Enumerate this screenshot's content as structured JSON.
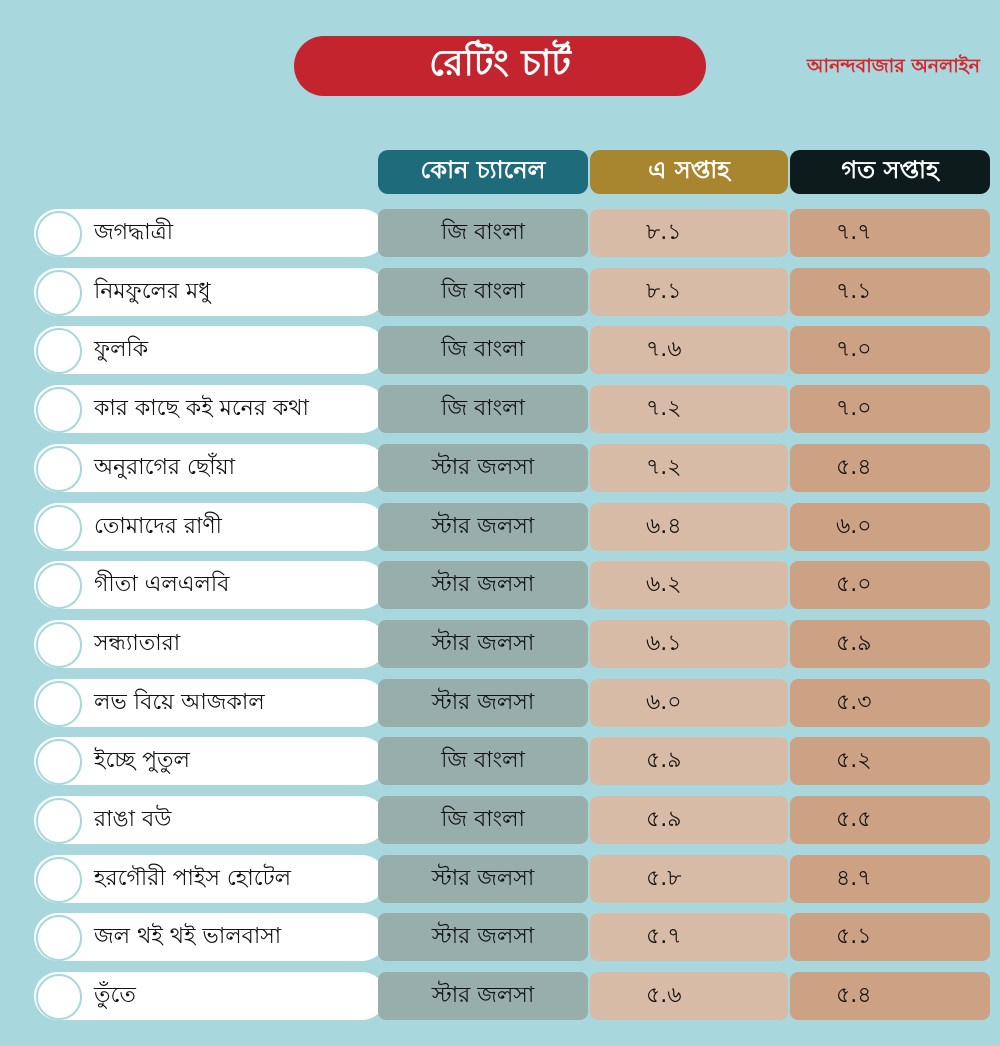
{
  "title": "রেটিং চার্ট",
  "brand": "আনন্দবাজার অনলাইন",
  "headers": {
    "channel": "কোন চ্যানেল",
    "this_week": "এ সপ্তাহ",
    "last_week": "গত সপ্তাহ"
  },
  "colors": {
    "background": "#a8d8dd",
    "title": "#c4242d",
    "channel_header": "#1e6b7b",
    "this_week_header": "#a8852f",
    "last_week_header": "#0e1b1c",
    "channel_cell": "#97aeab",
    "this_week_cell": "#d8bba6",
    "last_week_cell": "#cca184"
  },
  "chart_data": {
    "type": "table",
    "title": "রেটিং চার্ট",
    "columns": [
      "কোন চ্যানেল",
      "এ সপ্তাহ",
      "গত সপ্তাহ"
    ],
    "rows": [
      {
        "name": "জগদ্ধাত্রী",
        "channel": "জি বাংলা",
        "this_week": "৮.১",
        "last_week": "৭.৭"
      },
      {
        "name": "নিমফুলের মধু",
        "channel": "জি বাংলা",
        "this_week": "৮.১",
        "last_week": "৭.১"
      },
      {
        "name": "ফুলকি",
        "channel": "জি বাংলা",
        "this_week": "৭.৬",
        "last_week": "৭.০"
      },
      {
        "name": "কার কাছে কই মনের কথা",
        "channel": "জি বাংলা",
        "this_week": "৭.২",
        "last_week": "৭.০"
      },
      {
        "name": "অনুরাগের ছোঁয়া",
        "channel": "স্টার জলসা",
        "this_week": "৭.২",
        "last_week": "৫.৪"
      },
      {
        "name": "তোমাদের রাণী",
        "channel": "স্টার জলসা",
        "this_week": "৬.৪",
        "last_week": "৬.০"
      },
      {
        "name": "গীতা এলএলবি",
        "channel": "স্টার জলসা",
        "this_week": "৬.২",
        "last_week": "৫.০"
      },
      {
        "name": "সন্ধ্যাতারা",
        "channel": "স্টার জলসা",
        "this_week": "৬.১",
        "last_week": "৫.৯"
      },
      {
        "name": "লভ বিয়ে আজকাল",
        "channel": "স্টার জলসা",
        "this_week": "৬.০",
        "last_week": "৫.৩"
      },
      {
        "name": "ইচ্ছে পুতুল",
        "channel": "জি বাংলা",
        "this_week": "৫.৯",
        "last_week": "৫.২"
      },
      {
        "name": "রাঙা বউ",
        "channel": "জি বাংলা",
        "this_week": "৫.৯",
        "last_week": "৫.৫"
      },
      {
        "name": "হরগৌরী পাইস হোটেল",
        "channel": "স্টার জলসা",
        "this_week": "৫.৮",
        "last_week": "৪.৭"
      },
      {
        "name": "জল থই থই ভালবাসা",
        "channel": "স্টার জলসা",
        "this_week": "৫.৭",
        "last_week": "৫.১"
      },
      {
        "name": "তুঁতে",
        "channel": "স্টার জলসা",
        "this_week": "৫.৬",
        "last_week": "৫.৪"
      }
    ]
  }
}
